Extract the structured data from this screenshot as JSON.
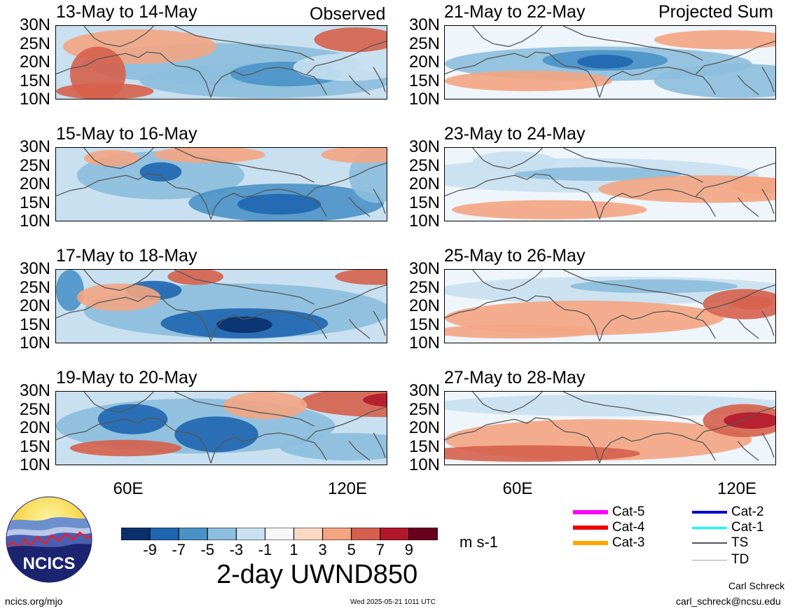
{
  "header": {
    "left_label": "Observed",
    "right_label": "Projected Sum"
  },
  "panels": {
    "left": [
      {
        "title": "13-May to 14-May"
      },
      {
        "title": "15-May to 16-May"
      },
      {
        "title": "17-May to 18-May"
      },
      {
        "title": "19-May to 20-May"
      }
    ],
    "right": [
      {
        "title": "21-May to 22-May"
      },
      {
        "title": "23-May to 24-May"
      },
      {
        "title": "25-May to 26-May"
      },
      {
        "title": "27-May to 28-May"
      }
    ]
  },
  "axes": {
    "y_ticks": [
      "30N",
      "25N",
      "20N",
      "15N",
      "10N"
    ],
    "x_ticks": [
      "60E",
      "120E"
    ]
  },
  "colorbar": {
    "labels": [
      "-9",
      "-7",
      "-5",
      "-3",
      "-1",
      "1",
      "3",
      "5",
      "7",
      "9"
    ],
    "colors": [
      "#08306b",
      "#1f66b0",
      "#4a92c6",
      "#8cbedd",
      "#c9e0f0",
      "#f7f7f7",
      "#fdd9c4",
      "#f3a582",
      "#d6604d",
      "#b2182b",
      "#67001f"
    ],
    "unit": "m s-1",
    "title": "2-day UWND850"
  },
  "legend": {
    "items": [
      {
        "label": "Cat-5",
        "color": "#ff00ff"
      },
      {
        "label": "Cat-4",
        "color": "#ee0000"
      },
      {
        "label": "Cat-3",
        "color": "#ffa500"
      },
      {
        "label": "Cat-2",
        "color": "#0000cd"
      },
      {
        "label": "Cat-1",
        "color": "#00ffff"
      },
      {
        "label": "TS",
        "color": "#555555"
      },
      {
        "label": "TD",
        "color": "#aaaaaa"
      }
    ]
  },
  "logo": {
    "text": "NCICS"
  },
  "footer": {
    "site": "ncics.org/mjo",
    "timestamp": "Wed 2025-05-21 1011 UTC",
    "author": "Carl Schreck",
    "email": "carl_schreck@ncsu.edu"
  }
}
